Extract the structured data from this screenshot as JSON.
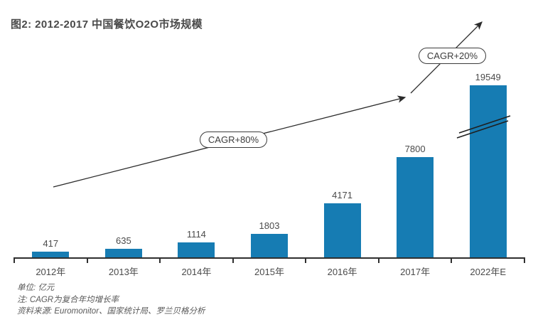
{
  "title": "图2: 2012-2017 中国餐饮O2O市场规模",
  "footer": {
    "unit": "单位: 亿元",
    "note": "注: CAGR为复合年均增长率",
    "source": "资料来源: Euromonitor、国家统计局、罗兰贝格分析"
  },
  "chart_data": {
    "type": "bar",
    "title": "图2: 2012-2017 中国餐饮O2O市场规模",
    "categories": [
      "2012年",
      "2013年",
      "2014年",
      "2015年",
      "2016年",
      "2017年",
      "2022年E"
    ],
    "values": [
      417,
      635,
      1114,
      1803,
      4171,
      7800,
      19549
    ],
    "unit": "亿元",
    "bar_color": "#167cb3",
    "text_color": "#4b4b4b",
    "axis_break_category": "2022年E",
    "annotations": [
      {
        "label": "CAGR+80%"
      },
      {
        "label": "CAGR+20%"
      }
    ],
    "xlabel": "",
    "ylabel": "",
    "grid": false,
    "legend": "none"
  }
}
